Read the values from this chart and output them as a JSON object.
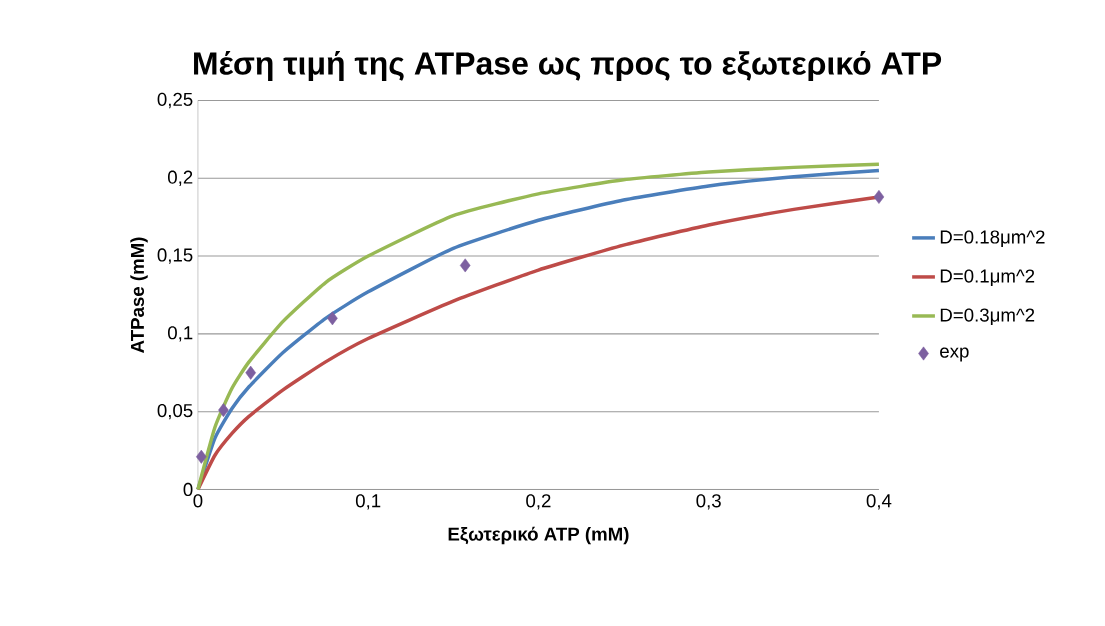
{
  "chart_data": {
    "type": "line",
    "title": "Μέση τιμή της ATPase ως προς το εξωτερικό ATP",
    "xlabel": "Εξωτερικό ATP (mM)",
    "ylabel": "ATPase (mM)",
    "xlim": [
      0,
      0.4
    ],
    "ylim": [
      0,
      0.25
    ],
    "xticks": [
      {
        "value": 0,
        "label": "0"
      },
      {
        "value": 0.1,
        "label": "0,1"
      },
      {
        "value": 0.2,
        "label": "0,2"
      },
      {
        "value": 0.3,
        "label": "0,3"
      },
      {
        "value": 0.4,
        "label": "0,4"
      }
    ],
    "yticks": [
      {
        "value": 0,
        "label": "0"
      },
      {
        "value": 0.05,
        "label": "0,05"
      },
      {
        "value": 0.1,
        "label": "0,1"
      },
      {
        "value": 0.15,
        "label": "0,15"
      },
      {
        "value": 0.2,
        "label": "0,2"
      },
      {
        "value": 0.25,
        "label": "0,25"
      }
    ],
    "grid": "y",
    "legend": "right",
    "series": [
      {
        "name": "D=0.18μm^2",
        "color": "#4a7ebb",
        "x": [
          0,
          0.01,
          0.02,
          0.03,
          0.05,
          0.075,
          0.1,
          0.15,
          0.2,
          0.25,
          0.3,
          0.35,
          0.4
        ],
        "values": [
          0,
          0.033,
          0.052,
          0.066,
          0.088,
          0.11,
          0.127,
          0.155,
          0.173,
          0.186,
          0.195,
          0.201,
          0.205
        ]
      },
      {
        "name": "D=0.1μm^2",
        "color": "#be4b48",
        "x": [
          0,
          0.01,
          0.02,
          0.03,
          0.05,
          0.075,
          0.1,
          0.15,
          0.2,
          0.25,
          0.3,
          0.35,
          0.4
        ],
        "values": [
          0,
          0.022,
          0.036,
          0.047,
          0.064,
          0.082,
          0.097,
          0.121,
          0.141,
          0.157,
          0.17,
          0.18,
          0.188
        ]
      },
      {
        "name": "D=0.3μm^2",
        "color": "#98b954",
        "x": [
          0,
          0.01,
          0.02,
          0.03,
          0.05,
          0.075,
          0.1,
          0.15,
          0.2,
          0.25,
          0.3,
          0.35,
          0.4
        ],
        "values": [
          0,
          0.04,
          0.065,
          0.082,
          0.108,
          0.133,
          0.15,
          0.176,
          0.19,
          0.199,
          0.204,
          0.207,
          0.209
        ]
      },
      {
        "name": "exp",
        "type": "scatter",
        "marker": "diamond",
        "color": "#7d60a0",
        "x": [
          0.002,
          0.015,
          0.031,
          0.079,
          0.157,
          0.4
        ],
        "values": [
          0.021,
          0.051,
          0.075,
          0.11,
          0.144,
          0.188
        ]
      }
    ]
  }
}
